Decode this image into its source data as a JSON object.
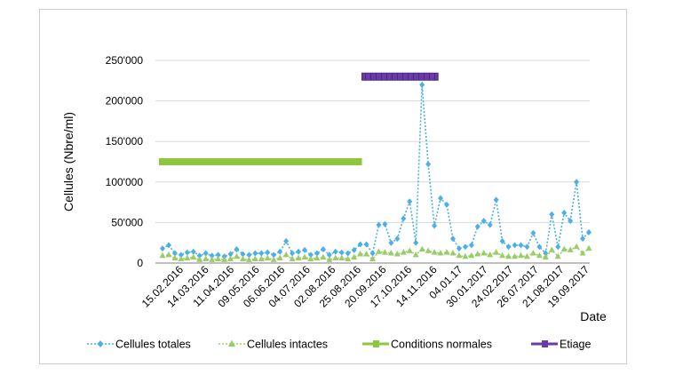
{
  "chart_data": {
    "type": "line",
    "title": "",
    "ylabel": "Cellules (Nbre/ml)",
    "xlabel": "Date",
    "ylim": [
      0,
      250000
    ],
    "y_ticks": [
      "0",
      "50'000",
      "100'000",
      "150'000",
      "200'000",
      "250'000"
    ],
    "y_tick_values": [
      0,
      50000,
      100000,
      150000,
      200000,
      250000
    ],
    "grid": "horizontal",
    "x_tick_labels": [
      "15.02.2016",
      "14.03.2016",
      "11.04.2016",
      "09.05.2016",
      "06.06.2016",
      "04.07.2016",
      "02.08.2016",
      "25.08.2016",
      "20.09.2016",
      "17.10.2016",
      "14.11.2016",
      "04.01.17",
      "30.01.2017",
      "24.02.2017",
      "26.07.2017",
      "21.08.2017",
      "19.09.2017"
    ],
    "series": [
      {
        "name": "Cellules totales",
        "color": "#4dafe8",
        "style": "dotted",
        "marker": "diamond",
        "values": [
          18000,
          22000,
          12000,
          10000,
          13000,
          14000,
          9000,
          12000,
          9000,
          10000,
          8000,
          11000,
          17000,
          11000,
          10000,
          12000,
          12000,
          13000,
          10000,
          14000,
          27000,
          12000,
          14000,
          16000,
          10000,
          12000,
          17000,
          10000,
          14000,
          13000,
          12000,
          16000,
          23000,
          23000,
          12000,
          47000,
          48000,
          25000,
          30000,
          55000,
          76000,
          25000,
          220000,
          122000,
          46000,
          80000,
          72000,
          30000,
          18000,
          20000,
          22000,
          45000,
          52000,
          47000,
          78000,
          27000,
          20000,
          22000,
          22000,
          20000,
          37000,
          20000,
          12000,
          60000,
          20000,
          62000,
          52000,
          100000,
          30000,
          38000
        ]
      },
      {
        "name": "Cellules intactes",
        "color": "#9acd6a",
        "style": "dotted",
        "marker": "triangle",
        "values": [
          9000,
          10000,
          6000,
          5000,
          6000,
          7000,
          4000,
          5000,
          4000,
          5000,
          4000,
          5000,
          8000,
          5000,
          4000,
          5000,
          5000,
          6000,
          4000,
          6000,
          10000,
          5000,
          6000,
          7000,
          5000,
          6000,
          7000,
          4000,
          6000,
          6000,
          5000,
          7000,
          11000,
          11000,
          5000,
          14000,
          13000,
          12000,
          11000,
          13000,
          15000,
          10000,
          17000,
          15000,
          13000,
          12000,
          13000,
          12000,
          9000,
          8000,
          9000,
          11000,
          12000,
          10000,
          13000,
          9000,
          8000,
          8000,
          9000,
          8000,
          12000,
          9000,
          7000,
          16000,
          8000,
          17000,
          16000,
          20000,
          12000,
          18000
        ]
      },
      {
        "name": "Conditions normales",
        "color": "#8dc63f",
        "style": "bar",
        "level": 125000,
        "x_start": "15.02.2016",
        "x_end": "20.09.2016"
      },
      {
        "name": "Etiage",
        "color": "#6a3aa8",
        "style": "bar",
        "level": 230000,
        "x_start": "20.09.2016",
        "x_end": "04.01.17"
      }
    ],
    "legend": "bottom"
  }
}
